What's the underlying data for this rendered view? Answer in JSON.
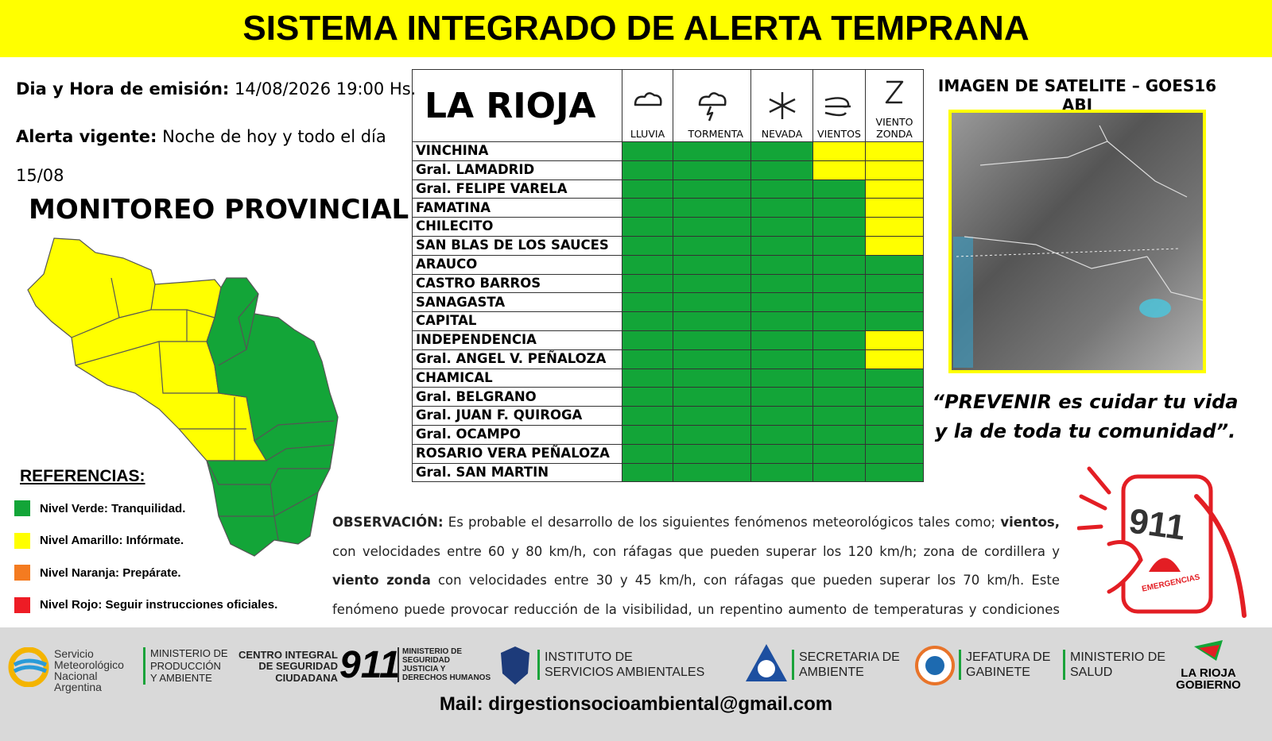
{
  "header": {
    "title": "SISTEMA INTEGRADO DE ALERTA TEMPRANA"
  },
  "emission": {
    "label": "Dia y Hora de emisión:",
    "value": "14/08/2026  19:00 Hs."
  },
  "alert": {
    "label": "Alerta vigente:",
    "value": "Noche de hoy y todo el día 15/08"
  },
  "monitoring_title": "MONITOREO PROVINCIAL",
  "references": {
    "title": "REFERENCIAS",
    "items": [
      {
        "label": "Nivel Verde: Tranquilidad.",
        "color": "#13a538"
      },
      {
        "label": "Nivel Amarillo: Infórmate.",
        "color": "#ffff00"
      },
      {
        "label": "Nivel Naranja: Prepárate.",
        "color": "#f47b20"
      },
      {
        "label": "Nivel Rojo: Seguir instrucciones oficiales.",
        "color": "#ee1c25"
      }
    ]
  },
  "table": {
    "title": "LA RIOJA",
    "columns": [
      "LLUVIA",
      "TORMENTA",
      "NEVADA",
      "VIENTOS",
      "VIENTO ZONDA"
    ],
    "rows": [
      {
        "name": "VINCHINA",
        "colors": [
          "#13a538",
          "#13a538",
          "#13a538",
          "#ffff00",
          "#ffff00"
        ]
      },
      {
        "name": "Gral. LAMADRID",
        "colors": [
          "#13a538",
          "#13a538",
          "#13a538",
          "#ffff00",
          "#ffff00"
        ]
      },
      {
        "name": "Gral. FELIPE VARELA",
        "colors": [
          "#13a538",
          "#13a538",
          "#13a538",
          "#13a538",
          "#ffff00"
        ]
      },
      {
        "name": "FAMATINA",
        "colors": [
          "#13a538",
          "#13a538",
          "#13a538",
          "#13a538",
          "#ffff00"
        ]
      },
      {
        "name": "CHILECITO",
        "colors": [
          "#13a538",
          "#13a538",
          "#13a538",
          "#13a538",
          "#ffff00"
        ]
      },
      {
        "name": "SAN BLAS DE LOS SAUCES",
        "colors": [
          "#13a538",
          "#13a538",
          "#13a538",
          "#13a538",
          "#ffff00"
        ]
      },
      {
        "name": "ARAUCO",
        "colors": [
          "#13a538",
          "#13a538",
          "#13a538",
          "#13a538",
          "#13a538"
        ]
      },
      {
        "name": "CASTRO BARROS",
        "colors": [
          "#13a538",
          "#13a538",
          "#13a538",
          "#13a538",
          "#13a538"
        ]
      },
      {
        "name": "SANAGASTA",
        "colors": [
          "#13a538",
          "#13a538",
          "#13a538",
          "#13a538",
          "#13a538"
        ]
      },
      {
        "name": "CAPITAL",
        "colors": [
          "#13a538",
          "#13a538",
          "#13a538",
          "#13a538",
          "#13a538"
        ]
      },
      {
        "name": "INDEPENDENCIA",
        "colors": [
          "#13a538",
          "#13a538",
          "#13a538",
          "#13a538",
          "#ffff00"
        ]
      },
      {
        "name": "Gral. ANGEL V. PEÑALOZA",
        "colors": [
          "#13a538",
          "#13a538",
          "#13a538",
          "#13a538",
          "#ffff00"
        ]
      },
      {
        "name": "CHAMICAL",
        "colors": [
          "#13a538",
          "#13a538",
          "#13a538",
          "#13a538",
          "#13a538"
        ]
      },
      {
        "name": "Gral. BELGRANO",
        "colors": [
          "#13a538",
          "#13a538",
          "#13a538",
          "#13a538",
          "#13a538"
        ]
      },
      {
        "name": "Gral. JUAN F. QUIROGA",
        "colors": [
          "#13a538",
          "#13a538",
          "#13a538",
          "#13a538",
          "#13a538"
        ]
      },
      {
        "name": "Gral. OCAMPO",
        "colors": [
          "#13a538",
          "#13a538",
          "#13a538",
          "#13a538",
          "#13a538"
        ]
      },
      {
        "name": "ROSARIO VERA PEÑALOZA",
        "colors": [
          "#13a538",
          "#13a538",
          "#13a538",
          "#13a538",
          "#13a538"
        ]
      },
      {
        "name": "Gral. SAN MARTIN",
        "colors": [
          "#13a538",
          "#13a538",
          "#13a538",
          "#13a538",
          "#13a538"
        ]
      }
    ]
  },
  "satellite": {
    "title": "IMAGEN DE SATELITE – GOES16 ABI"
  },
  "quote": "“PREVENIR es cuidar tu vida y la de toda tu comunidad”.",
  "observation": [
    {
      "text": "OBSERVACIÓN:",
      "bold": true
    },
    {
      "text": " Es probable el desarrollo de los siguientes fenómenos meteorológicos tales como; ",
      "bold": false
    },
    {
      "text": "vientos,",
      "bold": true
    },
    {
      "text": " con velocidades entre 60 y 80 km/h, con ráfagas que pueden superar los 120 km/h; zona de cordillera y ",
      "bold": false
    },
    {
      "text": "viento zonda",
      "bold": true
    },
    {
      "text": " con velocidades entre 30 y 45 km/h, con ráfagas que pueden superar los 70 km/h. Este fenómeno puede provocar reducción de la visibilidad, un repentino aumento de temperaturas y condiciones muy secas.",
      "bold": false
    }
  ],
  "emergency": {
    "number": "911",
    "label": "EMERGENCIAS"
  },
  "footer": {
    "smn": [
      "Servicio",
      "Meteorológico",
      "Nacional",
      "Argentina"
    ],
    "ministerio_produccion": [
      "MINISTERIO DE",
      "PRODUCCIÓN",
      "Y AMBIENTE"
    ],
    "centro_integral": [
      "CENTRO INTEGRAL",
      "DE SEGURIDAD",
      "CIUDADANA"
    ],
    "centro_number": "911",
    "ministerio_seguridad": [
      "MINISTERIO DE",
      "SEGURIDAD",
      "JUSTICIA Y",
      "DERECHOS HUMANOS"
    ],
    "instituto": [
      "INSTITUTO DE",
      "SERVICIOS AMBIENTALES"
    ],
    "secretaria": [
      "SECRETARIA DE",
      "AMBIENTE"
    ],
    "jefatura": [
      "JEFATURA DE",
      "GABINETE"
    ],
    "ministerio_salud": [
      "MINISTERIO DE",
      "SALUD"
    ],
    "la_rioja": [
      "LA RIOJA",
      "GOBIERNO"
    ],
    "email": "Mail: dirgestionsocioambiental@gmail.com"
  }
}
